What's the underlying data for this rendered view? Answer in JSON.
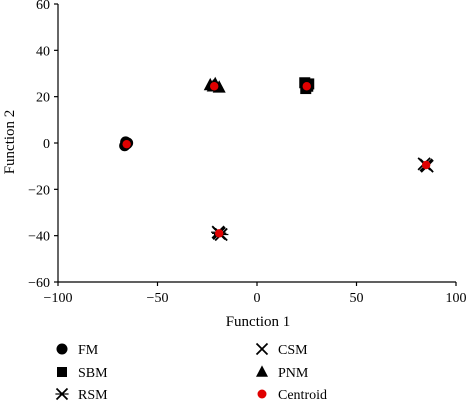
{
  "chart_data": {
    "type": "scatter",
    "xlabel": "Function 1",
    "ylabel": "Function 2",
    "xlim": [
      -100,
      100
    ],
    "ylim": [
      -60,
      60
    ],
    "xticks": [
      "−100",
      "−50",
      "0",
      "50",
      "100"
    ],
    "yticks": [
      "−60",
      "−40",
      "−20",
      "0",
      "20",
      "40",
      "60"
    ],
    "legend_position": "bottom",
    "series": [
      {
        "name": "FM",
        "marker": "circle",
        "color": "#000000",
        "points": [
          [
            -66,
            0.5
          ],
          [
            -65.5,
            -0.5
          ],
          [
            -66.5,
            -1.2
          ],
          [
            -65,
            0
          ]
        ]
      },
      {
        "name": "SBM",
        "marker": "square",
        "color": "#000000",
        "points": [
          [
            24,
            26
          ],
          [
            26,
            25.5
          ],
          [
            24.5,
            23.5
          ],
          [
            25.5,
            24.5
          ]
        ]
      },
      {
        "name": "RSM",
        "marker": "asterisk",
        "color": "#000000",
        "points": [
          [
            -19.5,
            -38.5
          ],
          [
            -18,
            -39.5
          ],
          [
            -19,
            -39
          ]
        ]
      },
      {
        "name": "CSM",
        "marker": "x",
        "color": "#000000",
        "points": [
          [
            84,
            -9
          ],
          [
            85.5,
            -10
          ],
          [
            85,
            -9.5
          ]
        ]
      },
      {
        "name": "PNM",
        "marker": "triangle",
        "color": "#000000",
        "points": [
          [
            -23.5,
            25
          ],
          [
            -21,
            25.5
          ],
          [
            -19,
            24
          ],
          [
            -22,
            24.5
          ]
        ]
      },
      {
        "name": "Centroid",
        "marker": "dot",
        "color": "#e00000",
        "points": [
          [
            -65.5,
            -0.5
          ],
          [
            25,
            24.5
          ],
          [
            -19,
            -39
          ],
          [
            85,
            -9.5
          ],
          [
            -21.5,
            24.5
          ]
        ]
      }
    ]
  }
}
